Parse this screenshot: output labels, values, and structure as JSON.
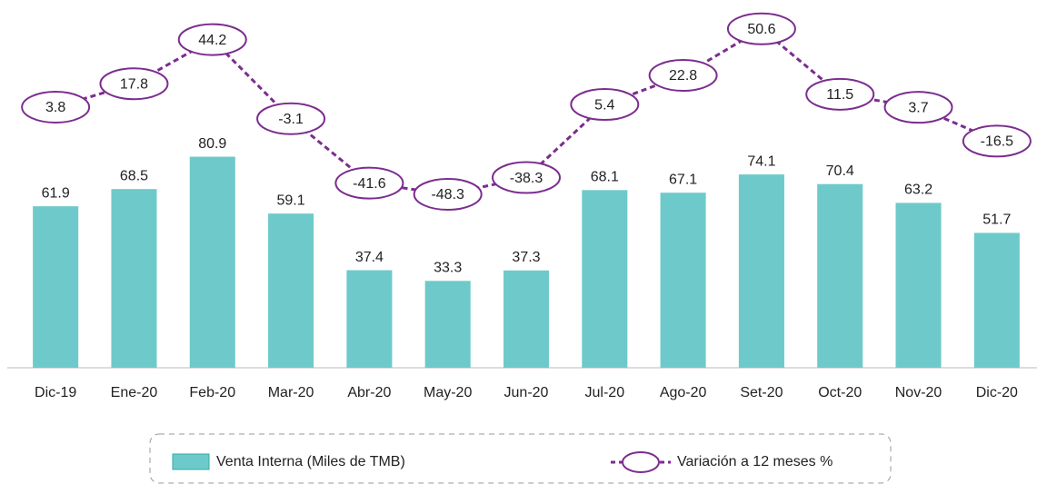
{
  "chart_data": {
    "type": "bar_line",
    "categories": [
      "Dic-19",
      "Ene-20",
      "Feb-20",
      "Mar-20",
      "Abr-20",
      "May-20",
      "Jun-20",
      "Jul-20",
      "Ago-20",
      "Set-20",
      "Oct-20",
      "Nov-20",
      "Dic-20"
    ],
    "series": [
      {
        "name": "Venta Interna (Miles de TMB)",
        "type": "bar",
        "color": "#6ecaca",
        "values": [
          61.9,
          68.5,
          80.9,
          59.1,
          37.4,
          33.3,
          37.3,
          68.1,
          67.1,
          74.1,
          70.4,
          63.2,
          51.7
        ]
      },
      {
        "name": "Variación a 12 meses %",
        "type": "line",
        "axis": "y2",
        "color": "#7b2d8e",
        "values": [
          3.8,
          17.8,
          44.2,
          -3.1,
          -41.6,
          -48.3,
          -38.3,
          5.4,
          22.8,
          50.6,
          11.5,
          3.7,
          -16.5
        ]
      }
    ],
    "ylim": [
      0,
      134
    ],
    "y2lim": [
      -152,
      57
    ]
  }
}
